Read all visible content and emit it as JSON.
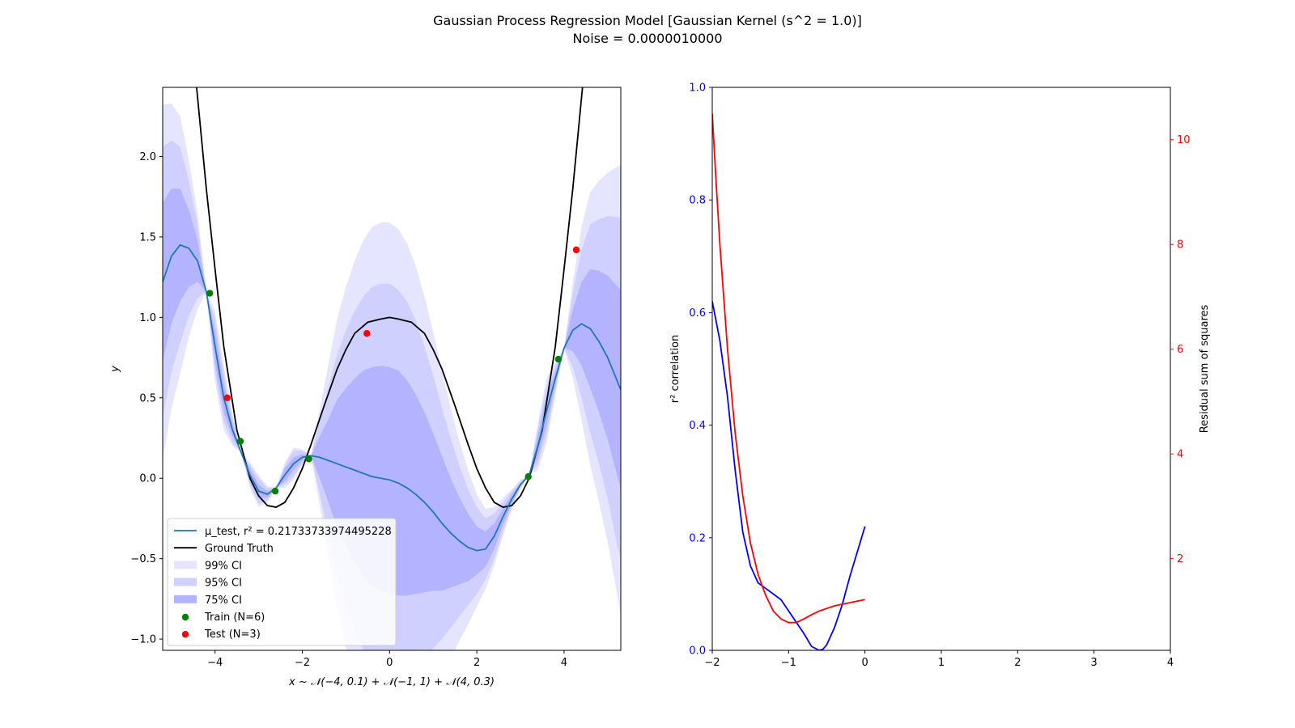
{
  "figure": {
    "title_line1": "Gaussian Process Regression Model [Gaussian Kernel (s^2 = 1.0)]",
    "title_line2": "Noise = 0.0000010000"
  },
  "chart_data": [
    {
      "type": "line",
      "xlabel": "x ~ 𝒩(−4, 0.1) + 𝒩(−1, 1) + 𝒩(4, 0.3)",
      "ylabel": "y",
      "xlim": [
        -5.2,
        5.3
      ],
      "ylim": [
        -1.07,
        2.43
      ],
      "xticks": [
        -4,
        -2,
        0,
        2,
        4
      ],
      "xtick_labels": [
        "−4",
        "−2",
        "0",
        "2",
        "4"
      ],
      "yticks": [
        -1.0,
        -0.5,
        0.0,
        0.5,
        1.0,
        1.5,
        2.0
      ],
      "ytick_labels": [
        "−1.0",
        "−0.5",
        "0.0",
        "0.5",
        "1.0",
        "1.5",
        "2.0"
      ],
      "ground_truth": {
        "name": "Ground Truth",
        "color": "#000000",
        "x": [
          -5.0,
          -4.5,
          -4.2,
          -4.0,
          -3.8,
          -3.5,
          -3.2,
          -3.0,
          -2.8,
          -2.6,
          -2.4,
          -2.2,
          -2.0,
          -1.8,
          -1.5,
          -1.2,
          -1.0,
          -0.8,
          -0.5,
          -0.2,
          0.0,
          0.2,
          0.5,
          0.8,
          1.0,
          1.2,
          1.5,
          1.8,
          2.0,
          2.2,
          2.4,
          2.6,
          2.8,
          3.0,
          3.2,
          3.5,
          3.8,
          4.0,
          4.2,
          4.5,
          5.0
        ],
        "y": [
          3.8,
          2.65,
          1.8,
          1.3,
          0.82,
          0.3,
          0.0,
          -0.11,
          -0.17,
          -0.18,
          -0.15,
          -0.06,
          0.06,
          0.21,
          0.45,
          0.68,
          0.8,
          0.9,
          0.97,
          0.99,
          1.0,
          0.99,
          0.97,
          0.9,
          0.8,
          0.68,
          0.45,
          0.21,
          0.06,
          -0.06,
          -0.15,
          -0.18,
          -0.17,
          -0.11,
          0.0,
          0.3,
          0.82,
          1.3,
          1.8,
          2.65,
          3.8
        ]
      },
      "mean": {
        "name": "μ_test, r² = 0.21733733974495228",
        "color": "#1f77b4",
        "x": [
          -5.2,
          -5.0,
          -4.8,
          -4.6,
          -4.4,
          -4.2,
          -4.0,
          -3.8,
          -3.6,
          -3.4,
          -3.2,
          -3.0,
          -2.8,
          -2.6,
          -2.4,
          -2.2,
          -2.0,
          -1.8,
          -1.6,
          -1.4,
          -1.2,
          -1.0,
          -0.8,
          -0.6,
          -0.4,
          -0.2,
          0.0,
          0.2,
          0.4,
          0.6,
          0.8,
          1.0,
          1.2,
          1.4,
          1.6,
          1.8,
          2.0,
          2.2,
          2.4,
          2.6,
          2.8,
          3.0,
          3.2,
          3.4,
          3.6,
          3.8,
          4.0,
          4.2,
          4.4,
          4.6,
          4.8,
          5.0,
          5.3
        ],
        "y": [
          1.22,
          1.38,
          1.45,
          1.43,
          1.35,
          1.16,
          0.82,
          0.5,
          0.3,
          0.16,
          0.02,
          -0.08,
          -0.1,
          -0.06,
          0.02,
          0.09,
          0.13,
          0.14,
          0.13,
          0.11,
          0.09,
          0.07,
          0.05,
          0.03,
          0.01,
          0.0,
          -0.01,
          -0.03,
          -0.06,
          -0.1,
          -0.15,
          -0.21,
          -0.28,
          -0.34,
          -0.39,
          -0.43,
          -0.45,
          -0.44,
          -0.36,
          -0.24,
          -0.13,
          -0.04,
          0.02,
          0.2,
          0.42,
          0.62,
          0.81,
          0.92,
          0.96,
          0.93,
          0.85,
          0.75,
          0.55
        ]
      },
      "ci_bands": [
        {
          "name": "99% CI",
          "color": "#e5e5ff",
          "half_width": [
            1.1,
            0.95,
            0.8,
            0.55,
            0.3,
            0.0,
            0.22,
            0.2,
            0.1,
            0.0,
            0.08,
            0.1,
            0.05,
            0.0,
            0.08,
            0.1,
            0.05,
            0.0,
            0.3,
            0.6,
            0.9,
            1.12,
            1.3,
            1.45,
            1.55,
            1.59,
            1.6,
            1.58,
            1.52,
            1.42,
            1.28,
            1.12,
            0.95,
            0.78,
            0.62,
            0.48,
            0.35,
            0.25,
            0.18,
            0.12,
            0.06,
            0.03,
            0.0,
            0.15,
            0.2,
            0.1,
            0.0,
            0.3,
            0.6,
            0.85,
            1.0,
            1.15,
            1.4
          ]
        },
        {
          "name": "95% CI",
          "color": "#d0d0ff",
          "half_width": [
            0.84,
            0.72,
            0.61,
            0.42,
            0.23,
            0.0,
            0.17,
            0.15,
            0.08,
            0.0,
            0.06,
            0.08,
            0.04,
            0.0,
            0.06,
            0.08,
            0.04,
            0.0,
            0.23,
            0.46,
            0.68,
            0.85,
            0.99,
            1.1,
            1.18,
            1.21,
            1.22,
            1.2,
            1.16,
            1.08,
            0.97,
            0.85,
            0.72,
            0.59,
            0.47,
            0.36,
            0.27,
            0.19,
            0.14,
            0.09,
            0.05,
            0.02,
            0.0,
            0.11,
            0.15,
            0.08,
            0.0,
            0.23,
            0.46,
            0.65,
            0.76,
            0.88,
            1.07
          ]
        },
        {
          "name": "75% CI",
          "color": "#b3b3ff",
          "half_width": [
            0.49,
            0.42,
            0.35,
            0.24,
            0.13,
            0.0,
            0.1,
            0.09,
            0.04,
            0.0,
            0.04,
            0.04,
            0.02,
            0.0,
            0.04,
            0.04,
            0.02,
            0.0,
            0.13,
            0.26,
            0.4,
            0.49,
            0.57,
            0.64,
            0.68,
            0.7,
            0.7,
            0.7,
            0.67,
            0.62,
            0.56,
            0.49,
            0.42,
            0.34,
            0.27,
            0.21,
            0.15,
            0.11,
            0.08,
            0.05,
            0.03,
            0.01,
            0.0,
            0.07,
            0.09,
            0.04,
            0.0,
            0.13,
            0.26,
            0.37,
            0.44,
            0.51,
            0.62
          ]
        }
      ],
      "train": {
        "name": "Train (N=6)",
        "color": "#008000",
        "points": [
          [
            -4.12,
            1.15
          ],
          [
            -3.42,
            0.23
          ],
          [
            -2.62,
            -0.08
          ],
          [
            -1.85,
            0.12
          ],
          [
            3.18,
            0.01
          ],
          [
            3.87,
            0.74
          ]
        ]
      },
      "test": {
        "name": "Test (N=3)",
        "color": "#ff0000",
        "points": [
          [
            -3.72,
            0.5
          ],
          [
            -0.52,
            0.9
          ],
          [
            4.28,
            1.42
          ]
        ]
      },
      "legend": {
        "placement": "lower-left"
      }
    },
    {
      "type": "line",
      "xlabel": "",
      "ylabel_left": "r² correlation",
      "ylabel_right": "Residual sum of squares",
      "xlim": [
        -2,
        4
      ],
      "ylim_left": [
        0.0,
        1.0
      ],
      "ylim_right": [
        0.25,
        11.0
      ],
      "xticks": [
        -2,
        -1,
        0,
        1,
        2,
        3,
        4
      ],
      "xtick_labels": [
        "−2",
        "−1",
        "0",
        "1",
        "2",
        "3",
        "4"
      ],
      "yticks_left": [
        0.0,
        0.2,
        0.4,
        0.6,
        0.8,
        1.0
      ],
      "ytick_labels_left": [
        "0.0",
        "0.2",
        "0.4",
        "0.6",
        "0.8",
        "1.0"
      ],
      "yticks_right": [
        2,
        4,
        6,
        8,
        10
      ],
      "ytick_labels_right": [
        "2",
        "4",
        "6",
        "8",
        "10"
      ],
      "r2_series": {
        "color": "#0000ff",
        "x": [
          -2.0,
          -1.9,
          -1.8,
          -1.7,
          -1.6,
          -1.5,
          -1.4,
          -1.3,
          -1.2,
          -1.1,
          -1.0,
          -0.9,
          -0.8,
          -0.7,
          -0.6,
          -0.55,
          -0.5,
          -0.4,
          -0.3,
          -0.2,
          -0.1,
          0.0
        ],
        "y": [
          0.62,
          0.55,
          0.45,
          0.32,
          0.21,
          0.15,
          0.12,
          0.11,
          0.1,
          0.09,
          0.07,
          0.05,
          0.03,
          0.007,
          0.0,
          0.002,
          0.01,
          0.04,
          0.08,
          0.13,
          0.175,
          0.22
        ]
      },
      "rss_series": {
        "color": "#ff0000",
        "x": [
          -2.0,
          -1.95,
          -1.9,
          -1.8,
          -1.7,
          -1.6,
          -1.5,
          -1.4,
          -1.3,
          -1.2,
          -1.1,
          -1.0,
          -0.9,
          -0.8,
          -0.7,
          -0.6,
          -0.5,
          -0.4,
          -0.3,
          -0.2,
          -0.1,
          0.0
        ],
        "y": [
          10.5,
          9.2,
          8.0,
          6.0,
          4.4,
          3.2,
          2.3,
          1.7,
          1.3,
          1.0,
          0.85,
          0.78,
          0.78,
          0.85,
          0.93,
          1.0,
          1.05,
          1.1,
          1.13,
          1.16,
          1.19,
          1.22
        ]
      }
    }
  ]
}
